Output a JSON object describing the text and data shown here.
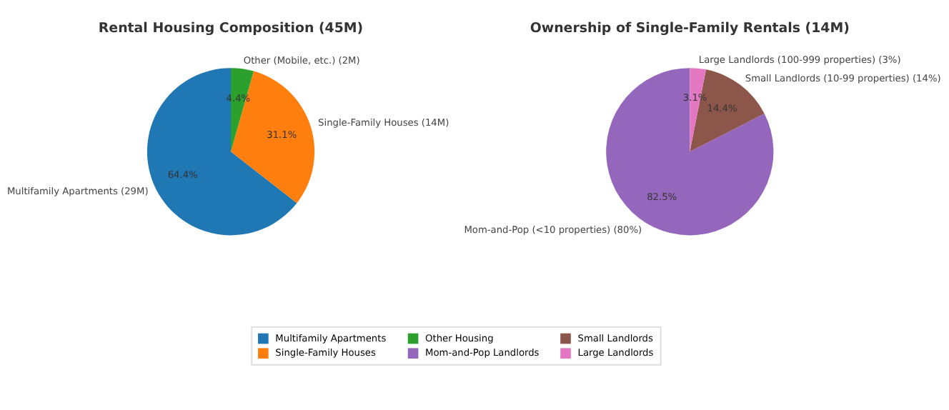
{
  "chart_data": [
    {
      "type": "pie",
      "title": "Rental Housing Composition (45M)",
      "categories": [
        "Multifamily Apartments",
        "Single-Family Houses",
        "Other Housing"
      ],
      "values": [
        64.4,
        31.1,
        4.4
      ],
      "colors": [
        "#1f77b4",
        "#ff7f0e",
        "#2ca02c"
      ],
      "value_labels": [
        "64.4%",
        "31.1%",
        "4.4%"
      ],
      "legend": "bottom",
      "annotations": [
        "Multifamily Apartments (29M)",
        "Single-Family Houses (14M)",
        "Other (Mobile, etc.) (2M)"
      ]
    },
    {
      "type": "pie",
      "title": "Ownership of Single-Family Rentals (14M)",
      "categories": [
        "Mom-and-Pop Landlords",
        "Small Landlords",
        "Large Landlords"
      ],
      "values": [
        82.5,
        14.4,
        3.1
      ],
      "colors": [
        "#9467bd",
        "#8c564b",
        "#e377c2"
      ],
      "value_labels": [
        "82.5%",
        "14.4%",
        "3.1%"
      ],
      "legend": "bottom",
      "annotations": [
        "Mom-and-Pop (<10 properties) (80%)",
        "Small Landlords (10-99 properties) (14%)",
        "Large Landlords (100-999 properties) (3%)"
      ]
    }
  ]
}
